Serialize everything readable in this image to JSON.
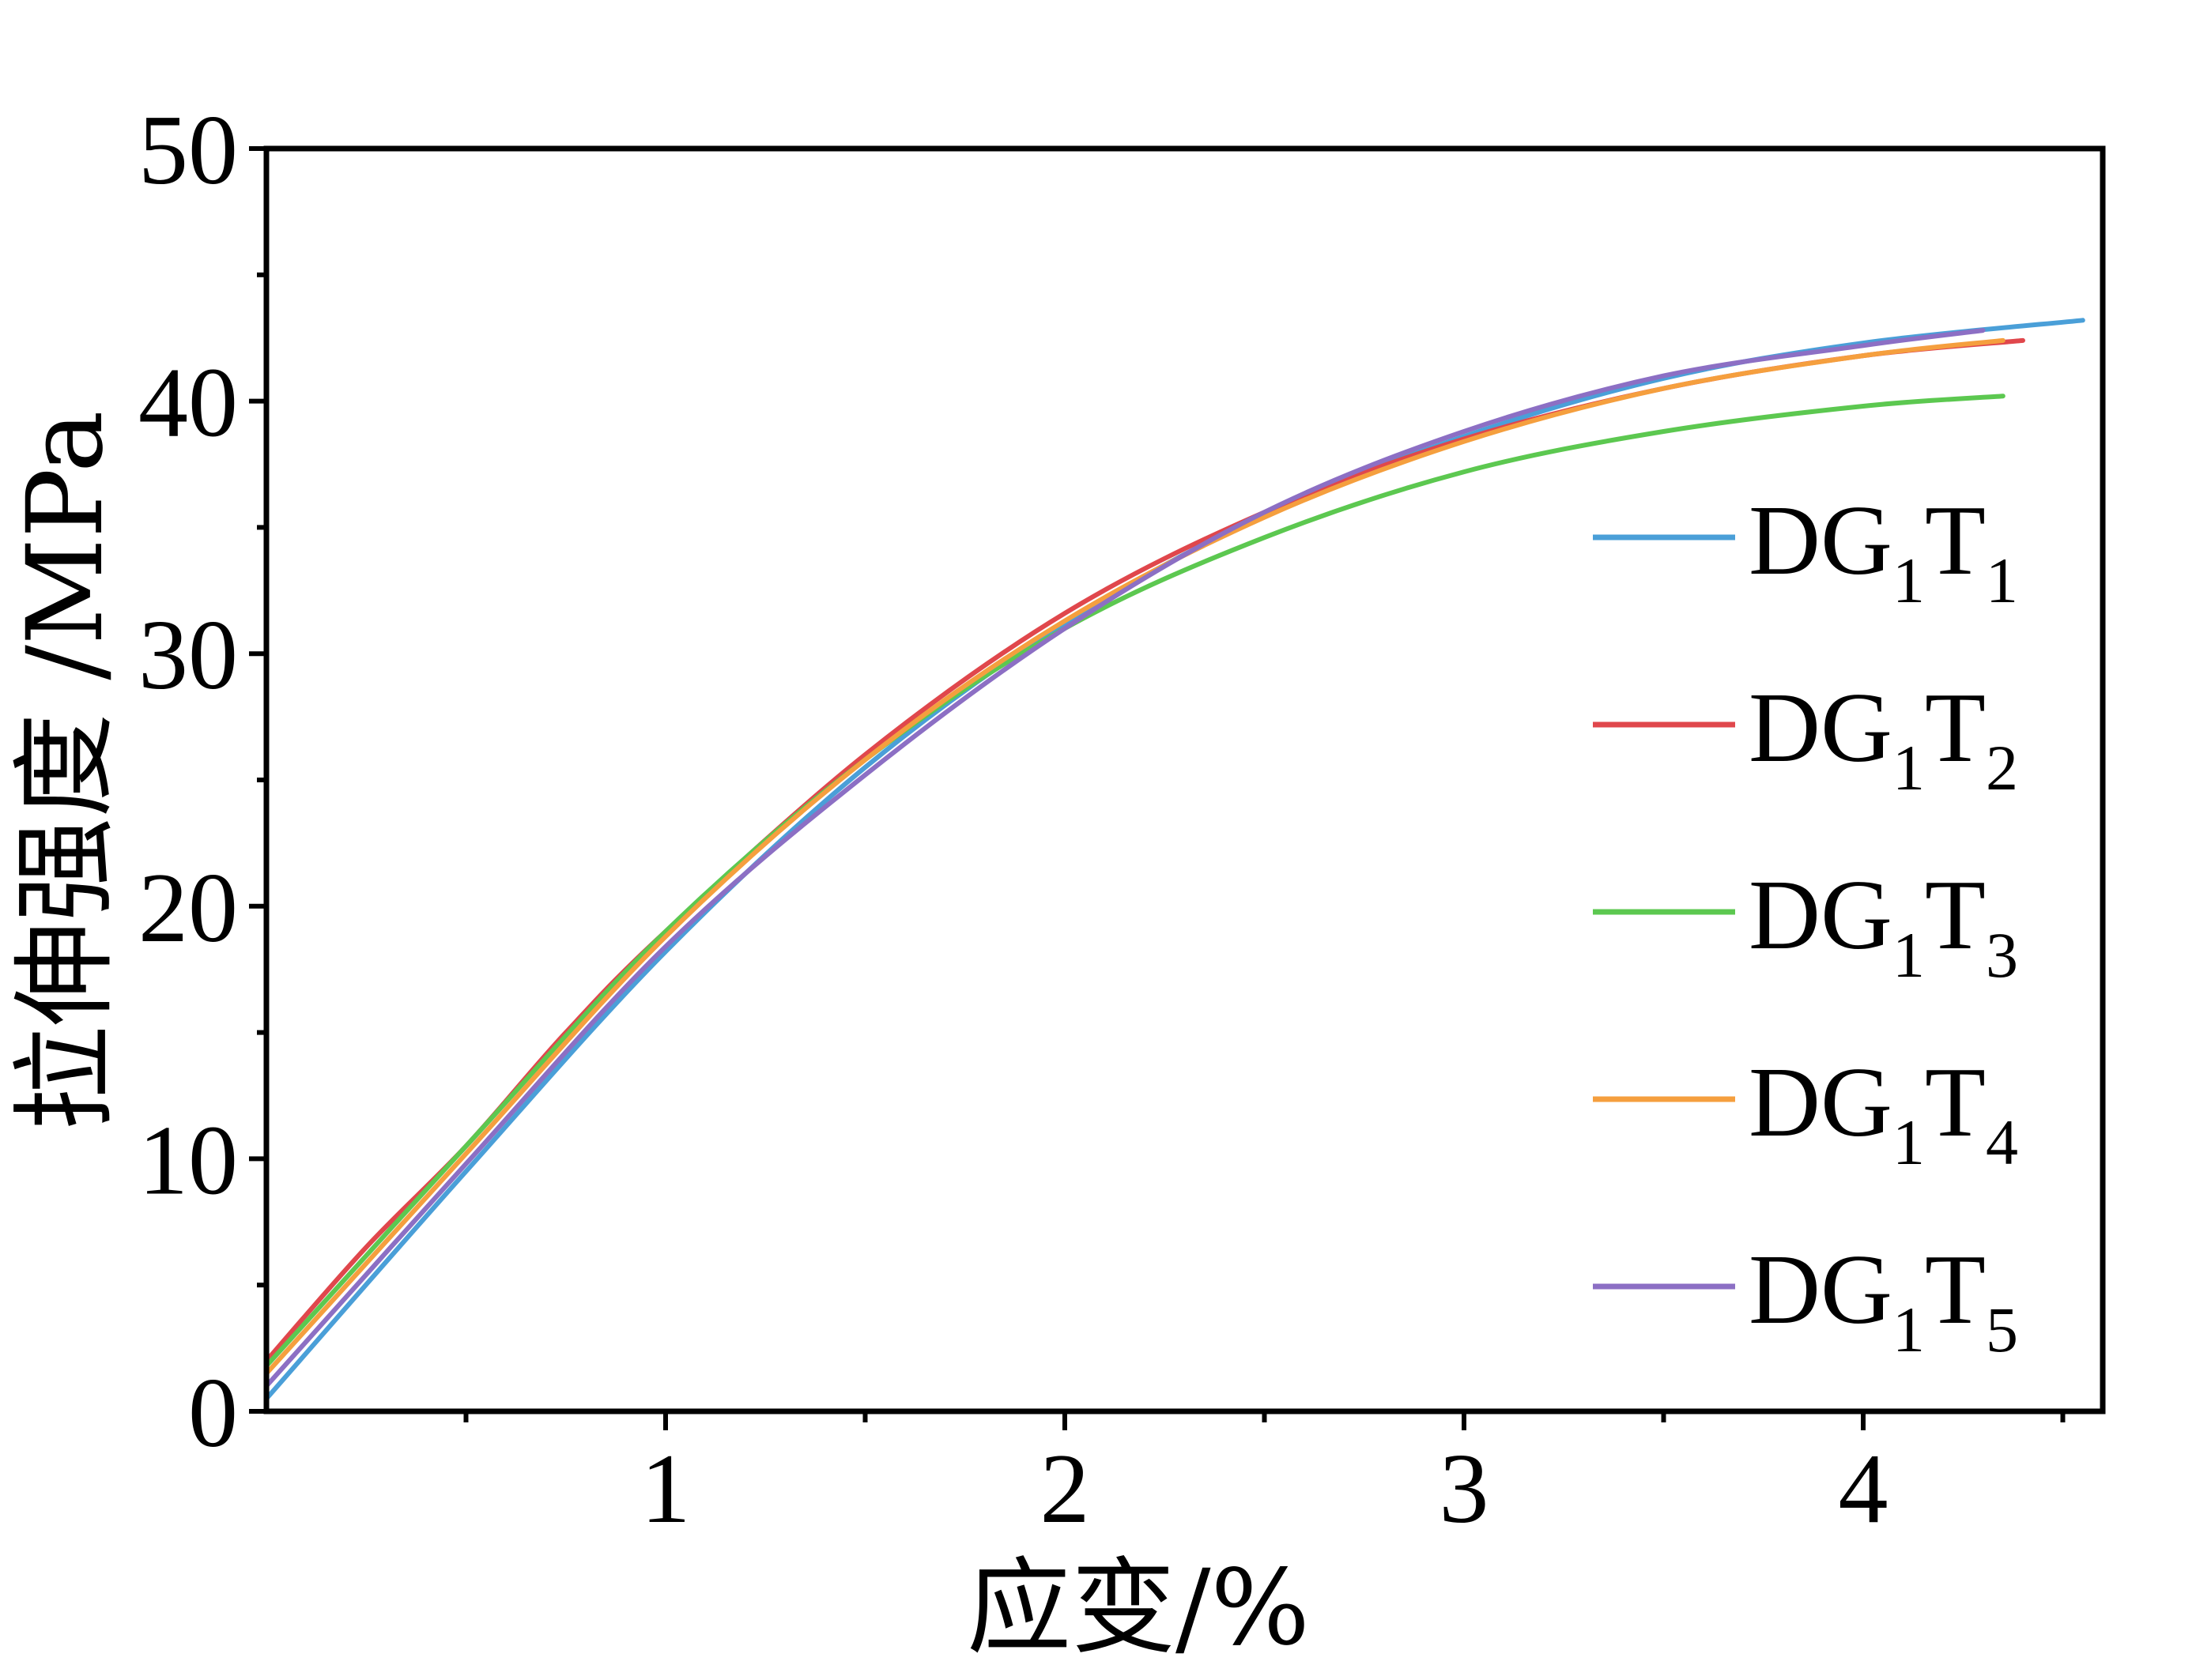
{
  "chart_data": {
    "type": "line",
    "xlabel": "应变/%",
    "ylabel": "拉伸强度 /MPa",
    "xlim": [
      0,
      4.6
    ],
    "ylim": [
      0,
      50
    ],
    "xticks": [
      1,
      2,
      3,
      4
    ],
    "xtick_labels": [
      "1",
      "2",
      "3",
      "4"
    ],
    "yticks": [
      0,
      10,
      20,
      30,
      40,
      50
    ],
    "ytick_labels": [
      "0",
      "10",
      "20",
      "30",
      "40",
      "50"
    ],
    "grid": false,
    "legend_position": "right",
    "series": [
      {
        "name": "DG1T1",
        "base": "DG",
        "sub1": "1",
        "mid": "T",
        "sub2": "1",
        "color": "#4a9fd8",
        "x": [
          0,
          0.5,
          1.0,
          1.5,
          2.0,
          2.5,
          3.0,
          3.5,
          4.0,
          4.55
        ],
        "y": [
          0.5,
          9.5,
          18.2,
          25.5,
          31.2,
          35.5,
          38.6,
          40.9,
          42.3,
          43.2
        ]
      },
      {
        "name": "DG1T2",
        "base": "DG",
        "sub1": "1",
        "mid": "T",
        "sub2": "2",
        "color": "#e0474c",
        "x": [
          0,
          0.25,
          0.5,
          0.75,
          1.0,
          1.5,
          2.0,
          2.5,
          3.0,
          3.5,
          4.0,
          4.4
        ],
        "y": [
          2.0,
          6.5,
          10.5,
          15.0,
          19.0,
          26.0,
          31.6,
          35.6,
          38.5,
          40.5,
          41.8,
          42.4
        ]
      },
      {
        "name": "DG1T3",
        "base": "DG",
        "sub1": "1",
        "mid": "T",
        "sub2": "3",
        "color": "#5cc850",
        "x": [
          0,
          0.5,
          1.0,
          1.5,
          2.0,
          2.5,
          3.0,
          3.5,
          4.0,
          4.35
        ],
        "y": [
          1.8,
          10.5,
          19.0,
          25.8,
          31.0,
          34.6,
          37.2,
          38.8,
          39.8,
          40.2
        ]
      },
      {
        "name": "DG1T4",
        "base": "DG",
        "sub1": "1",
        "mid": "T",
        "sub2": "4",
        "color": "#f59f3e",
        "x": [
          0,
          0.5,
          1.0,
          1.5,
          2.0,
          2.5,
          3.0,
          3.5,
          4.0,
          4.35
        ],
        "y": [
          1.5,
          10.2,
          18.8,
          25.8,
          31.3,
          35.4,
          38.4,
          40.5,
          41.8,
          42.4
        ]
      },
      {
        "name": "DG1T5",
        "base": "DG",
        "sub1": "1",
        "mid": "T",
        "sub2": "5",
        "color": "#8c6fc4",
        "x": [
          0,
          0.5,
          1.0,
          1.5,
          2.0,
          2.5,
          3.0,
          3.5,
          4.0,
          4.3
        ],
        "y": [
          1.0,
          9.8,
          18.4,
          25.2,
          31.0,
          35.6,
          38.8,
          41.0,
          42.2,
          42.8
        ]
      }
    ]
  }
}
